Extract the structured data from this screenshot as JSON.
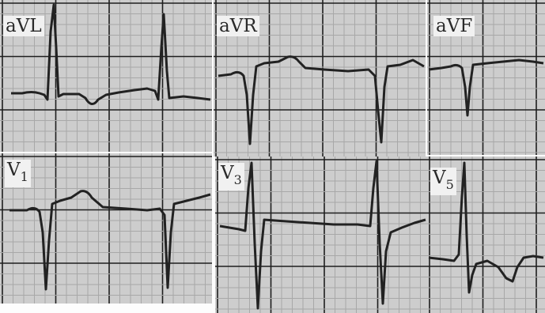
{
  "figure": {
    "panels": [
      {
        "id": "avl",
        "label": "aVL"
      },
      {
        "id": "avr",
        "label": "aVR"
      },
      {
        "id": "avf",
        "label": "aVF"
      },
      {
        "id": "v1",
        "label": "V",
        "sub": "1"
      },
      {
        "id": "v3",
        "label": "V",
        "sub": "3"
      },
      {
        "id": "v5",
        "label": "V",
        "sub": "5"
      }
    ],
    "colors": {
      "grid_paper": "#cdcdcd",
      "grid_fine": "#a8a8a8",
      "grid_major": "#1e1e1e",
      "trace": "#222222"
    }
  }
}
